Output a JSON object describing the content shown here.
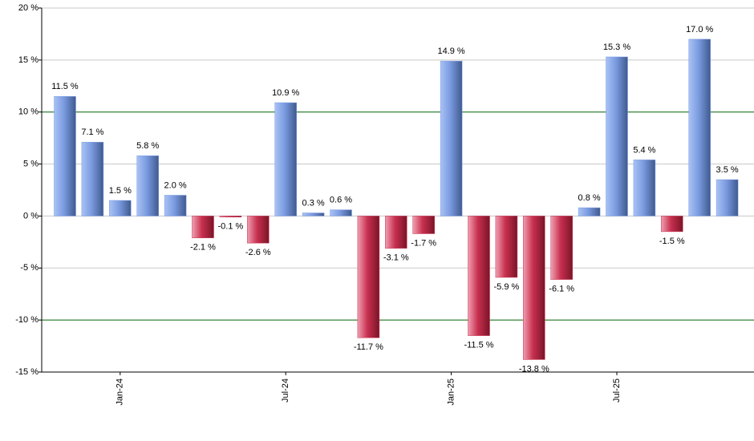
{
  "chart_data": {
    "type": "bar",
    "categories": [
      null,
      null,
      "Jan-24",
      null,
      null,
      null,
      null,
      null,
      "Jul-24",
      null,
      null,
      null,
      null,
      null,
      "Jan-25",
      null,
      null,
      null,
      null,
      null,
      "Jul-25",
      null,
      null,
      null,
      null
    ],
    "values": [
      11.5,
      7.1,
      1.5,
      5.8,
      2.0,
      -2.1,
      -0.1,
      -2.6,
      10.9,
      0.3,
      0.6,
      -11.7,
      -3.1,
      -1.7,
      14.9,
      -11.5,
      -5.9,
      -13.8,
      -6.1,
      0.8,
      15.3,
      5.4,
      -1.5,
      17.0,
      3.5
    ],
    "value_labels": [
      "11.5 %",
      "7.1 %",
      "1.5 %",
      "5.8 %",
      "2.0 %",
      "-2.1 %",
      "-0.1 %",
      "-2.6 %",
      "10.9 %",
      "0.3 %",
      "0.6 %",
      "-11.7 %",
      "-3.1 %",
      "-1.7 %",
      "14.9 %",
      "-11.5 %",
      "-5.9 %",
      "-13.8 %",
      "-6.1 %",
      "0.8 %",
      "15.3 %",
      "5.4 %",
      "-1.5 %",
      "17.0 %",
      "3.5 %"
    ],
    "positive_color": "#7b9be0",
    "negative_color": "#c8304f",
    "ylim": [
      -15,
      20
    ],
    "yticks": [
      {
        "value": -15,
        "label": "-15 %"
      },
      {
        "value": -10,
        "label": "-10 %"
      },
      {
        "value": -5,
        "label": "-5 %"
      },
      {
        "value": 0,
        "label": "0 %"
      },
      {
        "value": 5,
        "label": "5 %"
      },
      {
        "value": 10,
        "label": "10 %"
      },
      {
        "value": 15,
        "label": "15 %"
      },
      {
        "value": 20,
        "label": "20 %"
      }
    ],
    "grid": true,
    "grid_colors": [
      "#c8c8c8",
      "#006400",
      "#c8c8c8",
      "#c8c8c8",
      "#c8c8c8",
      "#006400",
      "#c8c8c8",
      "#c8c8c8"
    ]
  }
}
